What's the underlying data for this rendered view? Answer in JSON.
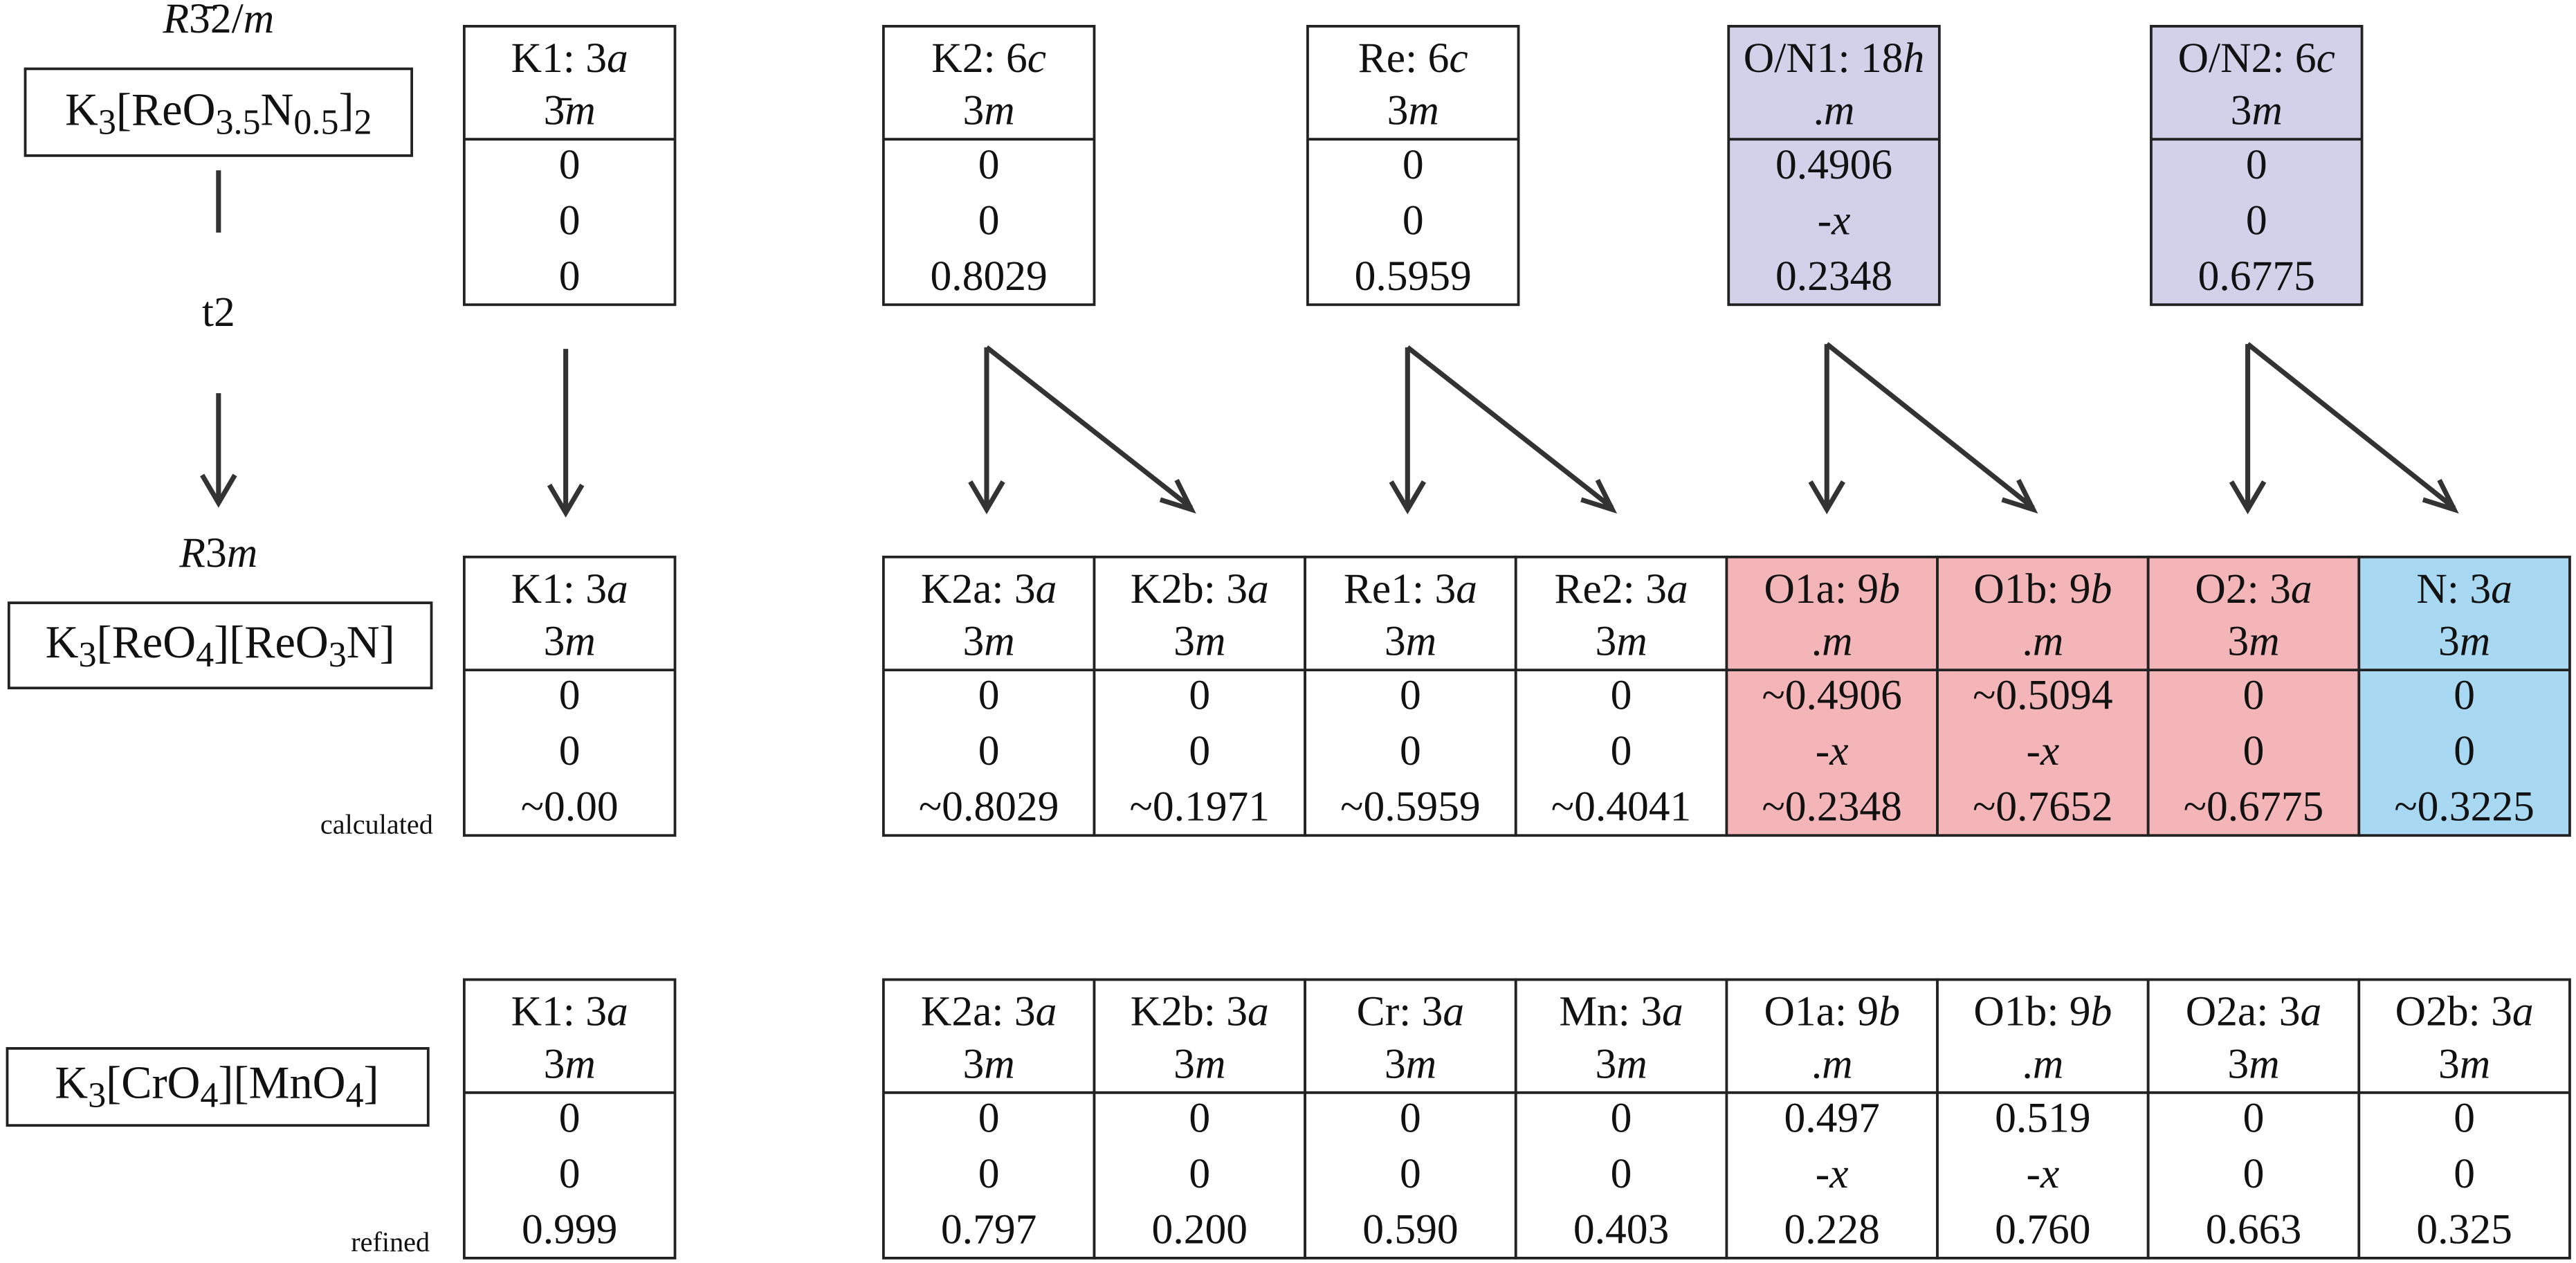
{
  "left": {
    "top_group": "R3̄2/m",
    "top_compound": "K3[ReO3.5N0.5]2",
    "relation": "t2",
    "mid_group": "R3m",
    "mid_compound": "K3[ReO4][ReO3N]",
    "mid_note": "calculated",
    "bottom_compound": "K3[CrO4][MnO4]",
    "bottom_note": "refined"
  },
  "rows": [
    {
      "sites": [
        {
          "label": "K1: 3a",
          "symmetry": "3̄m",
          "coords": [
            "0",
            "0",
            "0"
          ]
        },
        {
          "label": "K2: 6c",
          "symmetry": "3m",
          "coords": [
            "0",
            "0",
            "0.8029"
          ]
        },
        {
          "label": "Re: 6c",
          "symmetry": "3m",
          "coords": [
            "0",
            "0",
            "0.5959"
          ]
        },
        {
          "label": "O/N1: 18h",
          "symmetry": ".m",
          "coords": [
            "0.4906",
            "-x",
            "0.2348"
          ],
          "color": "#d3d0ea"
        },
        {
          "label": "O/N2: 6c",
          "symmetry": "3m",
          "coords": [
            "0",
            "0",
            "0.6775"
          ],
          "color": "#d3d0ea"
        }
      ]
    },
    {
      "sites": [
        {
          "label": "K1: 3a",
          "symmetry": "3m",
          "coords": [
            "0",
            "0",
            "~0.00"
          ]
        },
        {
          "label": "K2a: 3a",
          "symmetry": "3m",
          "coords": [
            "0",
            "0",
            "~0.8029"
          ]
        },
        {
          "label": "K2b: 3a",
          "symmetry": "3m",
          "coords": [
            "0",
            "0",
            "~0.1971"
          ]
        },
        {
          "label": "Re1: 3a",
          "symmetry": "3m",
          "coords": [
            "0",
            "0",
            "~0.5959"
          ]
        },
        {
          "label": "Re2: 3a",
          "symmetry": "3m",
          "coords": [
            "0",
            "0",
            "~0.4041"
          ]
        },
        {
          "label": "O1a: 9b",
          "symmetry": ".m",
          "coords": [
            "~0.4906",
            "-x",
            "~0.2348"
          ],
          "color": "#f4b5b8"
        },
        {
          "label": "O1b: 9b",
          "symmetry": ".m",
          "coords": [
            "~0.5094",
            "-x",
            "~0.7652"
          ],
          "color": "#f4b5b8"
        },
        {
          "label": "O2: 3a",
          "symmetry": "3m",
          "coords": [
            "0",
            "0",
            "~0.6775"
          ],
          "color": "#f4b5b8"
        },
        {
          "label": "N: 3a",
          "symmetry": "3m",
          "coords": [
            "0",
            "0",
            "~0.3225"
          ],
          "color": "#a8d8f2"
        }
      ]
    },
    {
      "sites": [
        {
          "label": "K1: 3a",
          "symmetry": "3m",
          "coords": [
            "0",
            "0",
            "0.999"
          ]
        },
        {
          "label": "K2a: 3a",
          "symmetry": "3m",
          "coords": [
            "0",
            "0",
            "0.797"
          ]
        },
        {
          "label": "K2b: 3a",
          "symmetry": "3m",
          "coords": [
            "0",
            "0",
            "0.200"
          ]
        },
        {
          "label": "Cr: 3a",
          "symmetry": "3m",
          "coords": [
            "0",
            "0",
            "0.590"
          ]
        },
        {
          "label": "Mn: 3a",
          "symmetry": "3m",
          "coords": [
            "0",
            "0",
            "0.403"
          ]
        },
        {
          "label": "O1a: 9b",
          "symmetry": ".m",
          "coords": [
            "0.497",
            "-x",
            "0.228"
          ]
        },
        {
          "label": "O1b: 9b",
          "symmetry": ".m",
          "coords": [
            "0.519",
            "-x",
            "0.760"
          ]
        },
        {
          "label": "O2a: 3a",
          "symmetry": "3m",
          "coords": [
            "0",
            "0",
            "0.663"
          ]
        },
        {
          "label": "O2b: 3a",
          "symmetry": "3m",
          "coords": [
            "0",
            "0",
            "0.325"
          ]
        }
      ]
    }
  ]
}
